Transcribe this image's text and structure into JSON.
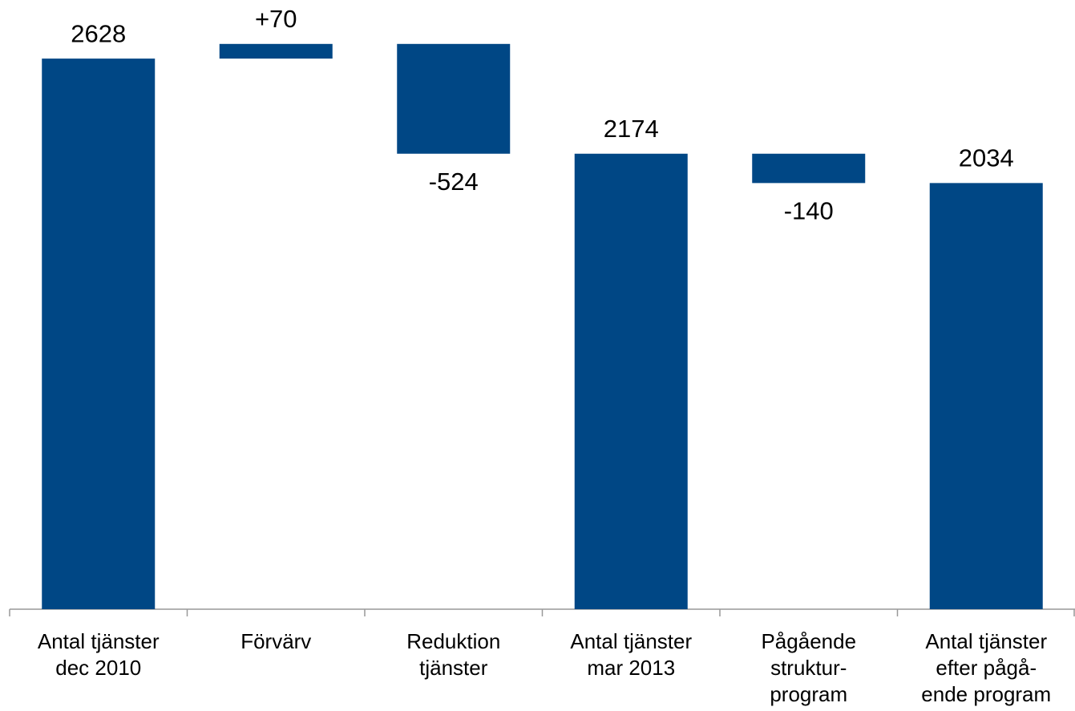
{
  "chart_data": {
    "type": "waterfall",
    "categories": [
      [
        "Antal tjänster",
        "dec 2010"
      ],
      [
        "Förvärv"
      ],
      [
        "Reduktion",
        "tjänster"
      ],
      [
        "Antal tjänster",
        "mar 2013"
      ],
      [
        "Pågående",
        "struktur-",
        "program"
      ],
      [
        "Antal tjänster",
        "efter pågå-",
        "ende program"
      ]
    ],
    "values": [
      2628,
      70,
      -524,
      2174,
      -140,
      2034
    ],
    "value_labels": [
      "2628",
      "+70",
      "-524",
      "2174",
      "-140",
      "2034"
    ],
    "measures": [
      "total",
      "relative",
      "relative",
      "total",
      "relative",
      "total"
    ],
    "color": "#004785",
    "ylim": [
      0,
      2900
    ]
  }
}
